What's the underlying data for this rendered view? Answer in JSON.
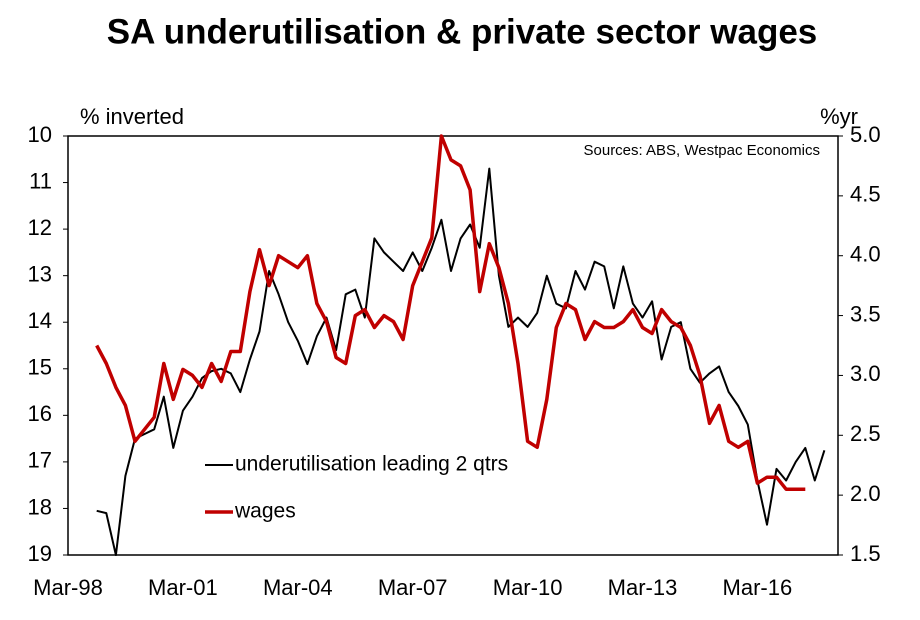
{
  "chart_data": {
    "type": "line",
    "title": "SA underutilisation & private sector wages",
    "y_label": "% inverted",
    "y2_label": "%yr",
    "annotation": "Sources: ABS, Westpac Economics",
    "categories": [
      "Mar-98",
      null,
      null,
      null,
      null,
      null,
      null,
      null,
      null,
      null,
      null,
      null,
      "Mar-01",
      null,
      null,
      null,
      null,
      null,
      null,
      null,
      null,
      null,
      null,
      null,
      "Mar-04",
      null,
      null,
      null,
      null,
      null,
      null,
      null,
      null,
      null,
      null,
      null,
      "Mar-07",
      null,
      null,
      null,
      null,
      null,
      null,
      null,
      null,
      null,
      null,
      null,
      "Mar-10",
      null,
      null,
      null,
      null,
      null,
      null,
      null,
      null,
      null,
      null,
      null,
      "Mar-13",
      null,
      null,
      null,
      null,
      null,
      null,
      null,
      null,
      null,
      null,
      null,
      "Mar-16",
      null,
      null,
      null,
      null,
      null,
      null,
      null,
      null
    ],
    "ylim": [
      10,
      19
    ],
    "y_inverted": true,
    "yticks": [
      10,
      11,
      12,
      13,
      14,
      15,
      16,
      17,
      18,
      19
    ],
    "y2lim": [
      1.5,
      5.0
    ],
    "y2ticks": [
      1.5,
      {
        "value": 2,
        "label": "2.0"
      },
      2.5,
      {
        "value": 3,
        "label": "3.0"
      },
      3.5,
      {
        "value": 4,
        "label": "4.0"
      },
      4.5,
      {
        "value": 5,
        "label": "5.0"
      }
    ],
    "series": [
      {
        "name": "underutilisation leading 2 qtrs",
        "color": "#000000",
        "values": [
          null,
          null,
          null,
          18.05,
          18.1,
          19.0,
          17.3,
          16.5,
          16.4,
          16.3,
          15.6,
          16.7,
          15.9,
          15.6,
          15.2,
          15.05,
          15.0,
          15.1,
          15.5,
          14.8,
          14.2,
          12.9,
          13.4,
          14.0,
          14.4,
          14.9,
          14.3,
          13.9,
          14.6,
          13.4,
          13.3,
          13.9,
          12.2,
          12.5,
          12.7,
          12.9,
          12.5,
          12.9,
          12.4,
          11.8,
          12.9,
          12.2,
          11.9,
          12.4,
          10.7,
          13.0,
          14.1,
          13.9,
          14.1,
          13.8,
          13.0,
          13.6,
          13.7,
          12.9,
          13.3,
          12.7,
          12.8,
          13.7,
          12.8,
          13.6,
          13.9,
          13.55,
          14.8,
          14.1,
          14.0,
          15.0,
          15.3,
          15.1,
          14.95,
          15.5,
          15.8,
          16.2,
          17.4,
          18.35,
          17.15,
          17.4,
          17.0,
          16.7,
          17.4,
          16.75,
          null
        ]
      },
      {
        "name": "wages",
        "color": "#c00000",
        "axis": "y2",
        "values": [
          null,
          null,
          null,
          3.25,
          3.1,
          2.9,
          2.75,
          2.45,
          2.55,
          2.65,
          3.1,
          2.8,
          3.05,
          3.0,
          2.9,
          3.1,
          2.95,
          3.2,
          3.2,
          3.7,
          4.05,
          3.75,
          4.0,
          3.95,
          3.9,
          4.0,
          3.6,
          3.45,
          3.15,
          3.1,
          3.5,
          3.55,
          3.4,
          3.5,
          3.45,
          3.3,
          3.75,
          3.95,
          4.15,
          5.0,
          4.8,
          4.75,
          4.55,
          3.7,
          4.1,
          3.9,
          3.6,
          3.1,
          2.45,
          2.4,
          2.8,
          3.4,
          3.6,
          3.55,
          3.3,
          3.45,
          3.4,
          3.4,
          3.45,
          3.55,
          3.4,
          3.35,
          3.55,
          3.45,
          3.4,
          3.25,
          3.0,
          2.6,
          2.75,
          2.45,
          2.4,
          2.45,
          2.1,
          2.15,
          2.15,
          2.05,
          2.05,
          2.05,
          null,
          null,
          null
        ]
      }
    ]
  }
}
